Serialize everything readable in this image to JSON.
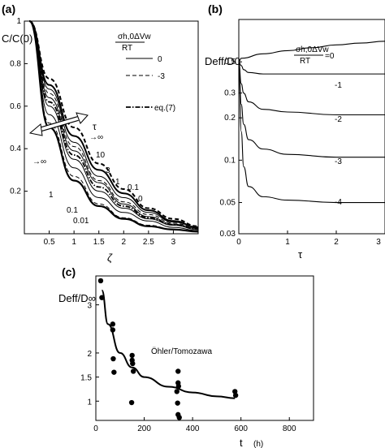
{
  "panels": {
    "a": {
      "label": "(a)"
    },
    "b": {
      "label": "(b)"
    },
    "c": {
      "label": "(c)"
    }
  },
  "chart_data": [
    {
      "panel": "(a)",
      "type": "line",
      "ylabel": "C/C(0)",
      "xlabel": "ζ",
      "xlim": [
        0,
        3.5
      ],
      "ylim": [
        0,
        1
      ],
      "xticks": [
        "0.5",
        "1",
        "1.5",
        "2",
        "2.5",
        "3"
      ],
      "yticks": [
        "0.2",
        "0.4",
        "0.6",
        "0.8",
        "1"
      ],
      "legend": {
        "title_num": "σh,0ΔVw",
        "title_den": "RT",
        "entries": [
          {
            "label": "0",
            "style": "solid"
          },
          {
            "label": "-3",
            "style": "dashed"
          },
          {
            "label": "eq.(7)",
            "style": "dash-dot"
          }
        ],
        "position": "top-right"
      },
      "arrow_label": "τ",
      "arrow_inf_upper": "→∞",
      "arrow_inf_lower": "→∞",
      "solid_curve_labels": [
        "10",
        "3",
        "1",
        "0.1",
        "0"
      ],
      "dashed_curve_labels": [
        "1",
        "0.1",
        "0.01"
      ],
      "series": [
        {
          "name": "0",
          "tau": "0",
          "style": "solid",
          "x": [
            0.1,
            0.5,
            1.0,
            1.5,
            2.0,
            2.5,
            3.0,
            3.5
          ],
          "y": [
            1.0,
            0.7,
            0.46,
            0.3,
            0.19,
            0.11,
            0.06,
            0.03
          ]
        },
        {
          "name": "0",
          "tau": "0.1",
          "style": "solid",
          "x": [
            0.1,
            0.5,
            1.0,
            1.5,
            2.0,
            2.5,
            3.0,
            3.5
          ],
          "y": [
            1.0,
            0.68,
            0.43,
            0.27,
            0.17,
            0.1,
            0.055,
            0.03
          ]
        },
        {
          "name": "0",
          "tau": "1",
          "style": "solid",
          "x": [
            0.1,
            0.5,
            1.0,
            1.5,
            2.0,
            2.5,
            3.0,
            3.5
          ],
          "y": [
            1.0,
            0.64,
            0.39,
            0.24,
            0.14,
            0.08,
            0.045,
            0.025
          ]
        },
        {
          "name": "0",
          "tau": "3",
          "style": "solid",
          "x": [
            0.1,
            0.5,
            1.0,
            1.5,
            2.0,
            2.5,
            3.0,
            3.5
          ],
          "y": [
            1.0,
            0.6,
            0.35,
            0.2,
            0.12,
            0.07,
            0.04,
            0.02
          ]
        },
        {
          "name": "0",
          "tau": "10",
          "style": "solid",
          "x": [
            0.1,
            0.5,
            1.0,
            1.5,
            2.0,
            2.5,
            3.0,
            3.5
          ],
          "y": [
            1.0,
            0.56,
            0.31,
            0.17,
            0.1,
            0.06,
            0.03,
            0.015
          ]
        },
        {
          "name": "0",
          "tau": "∞",
          "style": "solid",
          "x": [
            0.1,
            0.5,
            1.0,
            1.5,
            2.0,
            2.5,
            3.0,
            3.5
          ],
          "y": [
            1.0,
            0.5,
            0.25,
            0.13,
            0.07,
            0.035,
            0.02,
            0.01
          ]
        },
        {
          "name": "-3",
          "tau": "0.01",
          "style": "dashed",
          "x": [
            0.1,
            0.5,
            1.0,
            1.5,
            2.0,
            2.5,
            3.0,
            3.5
          ],
          "y": [
            1.0,
            0.73,
            0.5,
            0.33,
            0.21,
            0.12,
            0.07,
            0.035
          ]
        },
        {
          "name": "-3",
          "tau": "0.1",
          "style": "dashed",
          "x": [
            0.1,
            0.5,
            1.0,
            1.5,
            2.0,
            2.5,
            3.0,
            3.5
          ],
          "y": [
            1.0,
            0.66,
            0.41,
            0.25,
            0.15,
            0.09,
            0.05,
            0.025
          ]
        },
        {
          "name": "-3",
          "tau": "1",
          "style": "dashed",
          "x": [
            0.1,
            0.5,
            1.0,
            1.5,
            2.0,
            2.5,
            3.0,
            3.5
          ],
          "y": [
            1.0,
            0.52,
            0.27,
            0.14,
            0.075,
            0.04,
            0.02,
            0.01
          ]
        },
        {
          "name": "eq.(7)",
          "style": "dash-dot",
          "x": [
            0.1,
            0.5,
            1.0,
            1.5,
            2.0,
            2.5,
            3.0,
            3.5
          ],
          "y": [
            1.0,
            0.62,
            0.37,
            0.22,
            0.13,
            0.075,
            0.042,
            0.022
          ]
        }
      ]
    },
    {
      "panel": "(b)",
      "type": "line",
      "ylabel": "Deff/D0",
      "xlabel": "τ",
      "xlim": [
        0,
        3
      ],
      "ylim": [
        0.03,
        1
      ],
      "yscale": "log",
      "xticks": [
        "0",
        "1",
        "2",
        "3"
      ],
      "yticks": [
        "0.03",
        "0.05",
        "0.1",
        "0.2",
        "0.3",
        "0.5"
      ],
      "legend": {
        "title_num": "σh,0ΔVw",
        "title_den": "RT",
        "suffix": "=0",
        "position": "top"
      },
      "curve_labels": [
        "-1",
        "-2",
        "-3",
        "-4"
      ],
      "series": [
        {
          "name": "0",
          "x": [
            0,
            0.05,
            0.5,
            1,
            1.5,
            2,
            2.5,
            3
          ],
          "y": [
            0.5,
            0.53,
            0.57,
            0.6,
            0.63,
            0.66,
            0.68,
            0.7
          ]
        },
        {
          "name": "-1",
          "x": [
            0,
            0.05,
            0.1,
            0.2,
            0.5,
            1,
            2,
            3
          ],
          "y": [
            0.5,
            0.47,
            0.44,
            0.42,
            0.41,
            0.41,
            0.41,
            0.41
          ]
        },
        {
          "name": "-2",
          "x": [
            0,
            0.05,
            0.1,
            0.2,
            0.5,
            1,
            2,
            3
          ],
          "y": [
            0.5,
            0.35,
            0.3,
            0.26,
            0.23,
            0.22,
            0.21,
            0.21
          ]
        },
        {
          "name": "-3",
          "x": [
            0,
            0.05,
            0.1,
            0.2,
            0.5,
            1,
            2,
            3
          ],
          "y": [
            0.5,
            0.25,
            0.18,
            0.14,
            0.12,
            0.11,
            0.105,
            0.105
          ]
        },
        {
          "name": "-4",
          "x": [
            0,
            0.05,
            0.1,
            0.2,
            0.5,
            1,
            2,
            3
          ],
          "y": [
            0.5,
            0.16,
            0.09,
            0.065,
            0.055,
            0.052,
            0.05,
            0.05
          ]
        }
      ]
    },
    {
      "panel": "(c)",
      "type": "scatter",
      "ylabel": "Deff/D∞",
      "xlabel": "t",
      "xunit": "(h)",
      "xlim": [
        0,
        900
      ],
      "ylim": [
        0.6,
        3.6
      ],
      "xticks": [
        "0",
        "200",
        "400",
        "600",
        "800"
      ],
      "yticks": [
        "1",
        "1.5",
        "2",
        "3"
      ],
      "annotation": "Öhler/Tomozawa",
      "points": {
        "x": [
          20,
          25,
          70,
          70,
          72,
          75,
          150,
          150,
          152,
          155,
          148,
          340,
          340,
          342,
          335,
          338,
          340,
          345,
          575,
          578
        ],
        "y": [
          3.5,
          3.15,
          2.6,
          2.48,
          1.88,
          1.6,
          1.95,
          1.85,
          1.78,
          1.62,
          0.97,
          1.62,
          1.38,
          1.31,
          1.2,
          0.96,
          0.72,
          0.66,
          1.2,
          1.12
        ]
      },
      "fit": {
        "x": [
          25,
          50,
          100,
          150,
          200,
          300,
          400,
          500,
          575
        ],
        "y": [
          3.3,
          2.6,
          2.0,
          1.7,
          1.5,
          1.3,
          1.18,
          1.1,
          1.06
        ]
      }
    }
  ]
}
